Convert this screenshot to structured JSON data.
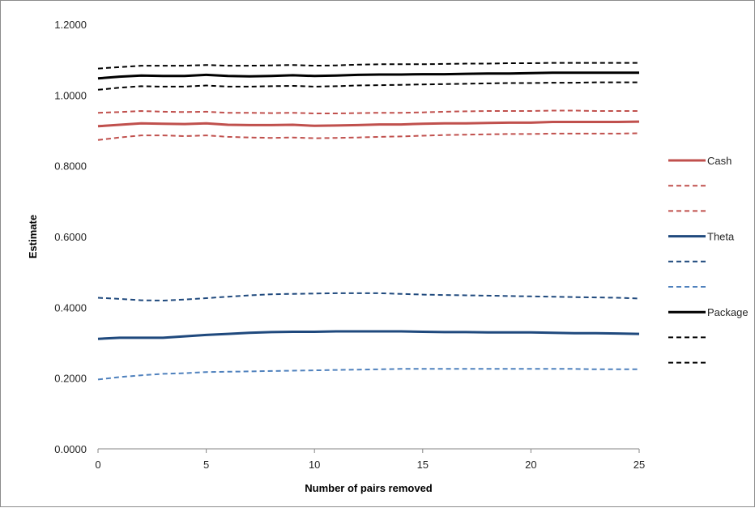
{
  "chart_data": {
    "type": "line",
    "xlabel": "Number of pairs removed",
    "ylabel": "Estimate",
    "xlim": [
      0,
      25
    ],
    "ylim": [
      0,
      1.2
    ],
    "x_ticks": [
      "0",
      "5",
      "10",
      "15",
      "20",
      "25"
    ],
    "y_ticks": [
      "0.0000",
      "0.2000",
      "0.4000",
      "0.6000",
      "0.8000",
      "1.0000",
      "1.2000"
    ],
    "grid": false,
    "legend_position": "right",
    "x": [
      0,
      1,
      2,
      3,
      4,
      5,
      6,
      7,
      8,
      9,
      10,
      11,
      12,
      13,
      14,
      15,
      16,
      17,
      18,
      19,
      20,
      21,
      22,
      23,
      24,
      25
    ],
    "series": [
      {
        "name": "Cash",
        "color": "#c0504d",
        "dash": "solid",
        "values": [
          0.912,
          0.916,
          0.92,
          0.919,
          0.918,
          0.92,
          0.916,
          0.915,
          0.915,
          0.916,
          0.913,
          0.914,
          0.915,
          0.917,
          0.917,
          0.919,
          0.92,
          0.92,
          0.921,
          0.922,
          0.922,
          0.924,
          0.924,
          0.924,
          0.924,
          0.925
        ]
      },
      {
        "name": "",
        "color": "#c0504d",
        "dash": "dashed",
        "values": [
          0.95,
          0.952,
          0.955,
          0.953,
          0.952,
          0.953,
          0.95,
          0.95,
          0.949,
          0.95,
          0.948,
          0.948,
          0.949,
          0.95,
          0.95,
          0.951,
          0.953,
          0.954,
          0.955,
          0.955,
          0.955,
          0.956,
          0.956,
          0.955,
          0.955,
          0.955
        ]
      },
      {
        "name": "",
        "color": "#c0504d",
        "dash": "dashed",
        "values": [
          0.873,
          0.88,
          0.886,
          0.886,
          0.884,
          0.886,
          0.882,
          0.88,
          0.879,
          0.88,
          0.878,
          0.879,
          0.88,
          0.882,
          0.883,
          0.885,
          0.887,
          0.888,
          0.889,
          0.89,
          0.89,
          0.891,
          0.891,
          0.891,
          0.891,
          0.892
        ]
      },
      {
        "name": "Theta",
        "color": "#1f497d",
        "dash": "solid",
        "values": [
          0.311,
          0.314,
          0.314,
          0.314,
          0.318,
          0.322,
          0.325,
          0.328,
          0.33,
          0.331,
          0.331,
          0.332,
          0.332,
          0.332,
          0.332,
          0.331,
          0.33,
          0.33,
          0.329,
          0.329,
          0.329,
          0.328,
          0.327,
          0.327,
          0.326,
          0.325
        ]
      },
      {
        "name": "",
        "color": "#1f497d",
        "dash": "dashed",
        "values": [
          0.427,
          0.424,
          0.42,
          0.419,
          0.422,
          0.426,
          0.43,
          0.434,
          0.437,
          0.438,
          0.439,
          0.44,
          0.44,
          0.44,
          0.438,
          0.436,
          0.435,
          0.434,
          0.433,
          0.432,
          0.431,
          0.43,
          0.429,
          0.428,
          0.427,
          0.425
        ]
      },
      {
        "name": "",
        "color": "#4f81bd",
        "dash": "dashed",
        "values": [
          0.196,
          0.203,
          0.208,
          0.212,
          0.214,
          0.217,
          0.218,
          0.219,
          0.22,
          0.221,
          0.222,
          0.223,
          0.224,
          0.225,
          0.226,
          0.226,
          0.226,
          0.226,
          0.226,
          0.226,
          0.226,
          0.226,
          0.226,
          0.225,
          0.225,
          0.225
        ]
      },
      {
        "name": "Package",
        "color": "#000000",
        "dash": "solid",
        "values": [
          1.047,
          1.052,
          1.055,
          1.054,
          1.054,
          1.057,
          1.054,
          1.053,
          1.054,
          1.056,
          1.054,
          1.055,
          1.057,
          1.058,
          1.058,
          1.059,
          1.059,
          1.06,
          1.061,
          1.061,
          1.062,
          1.063,
          1.063,
          1.063,
          1.063,
          1.063
        ]
      },
      {
        "name": "",
        "color": "#000000",
        "dash": "dashed",
        "values": [
          1.075,
          1.079,
          1.083,
          1.083,
          1.083,
          1.085,
          1.083,
          1.083,
          1.084,
          1.085,
          1.083,
          1.084,
          1.086,
          1.087,
          1.087,
          1.087,
          1.088,
          1.089,
          1.089,
          1.09,
          1.09,
          1.091,
          1.091,
          1.091,
          1.091,
          1.091
        ]
      },
      {
        "name": "",
        "color": "#000000",
        "dash": "dashed",
        "values": [
          1.015,
          1.021,
          1.025,
          1.024,
          1.024,
          1.027,
          1.024,
          1.024,
          1.025,
          1.026,
          1.024,
          1.025,
          1.027,
          1.028,
          1.029,
          1.03,
          1.031,
          1.032,
          1.033,
          1.034,
          1.034,
          1.035,
          1.035,
          1.036,
          1.036,
          1.036
        ]
      }
    ]
  }
}
